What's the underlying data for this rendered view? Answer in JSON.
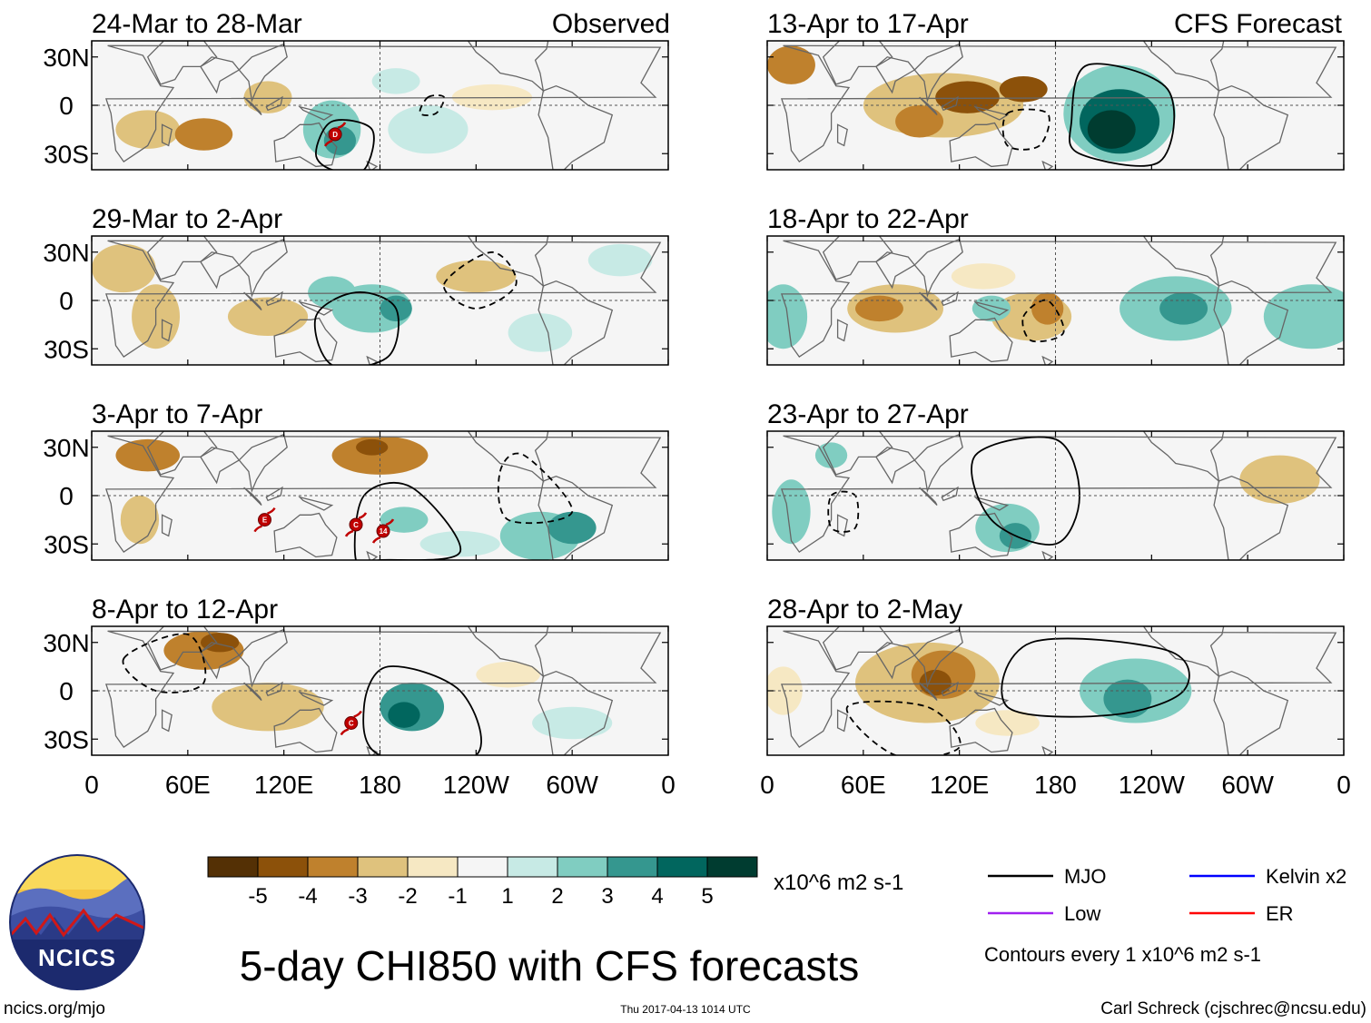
{
  "figure": {
    "title": "5-day CHI850 with CFS forecasts",
    "url": "ncics.org/mjo",
    "timestamp": "Thu 2017-04-13 1014 UTC",
    "credit": "Carl Schreck (cjschrec@ncsu.edu)",
    "logo_text": "NCICS"
  },
  "headers": {
    "observed": "Observed",
    "forecast": "CFS Forecast"
  },
  "chart_data": {
    "type": "heatmap",
    "variable": "CHI850",
    "units": "x10^6 m2 s-1",
    "lat_ticks": [
      "30N",
      "0",
      "30S"
    ],
    "lon_ticks": [
      "0",
      "60E",
      "120E",
      "180",
      "120W",
      "60W",
      "0"
    ],
    "lon_values": [
      0,
      60,
      120,
      180,
      240,
      300,
      360
    ],
    "lat_values": [
      30,
      0,
      -30
    ],
    "lat_range": [
      -40,
      40
    ],
    "lon_range": [
      0,
      360
    ],
    "colorbar": {
      "labels": [
        "-5",
        "-4",
        "-3",
        "-2",
        "-1",
        "1",
        "2",
        "3",
        "4",
        "5"
      ],
      "levels": [
        -5,
        -4,
        -3,
        -2,
        -1,
        1,
        2,
        3,
        4,
        5
      ],
      "colors": [
        "#543005",
        "#8c510a",
        "#bf812d",
        "#dfc27d",
        "#f6e8c3",
        "#f5f5f5",
        "#c7eae5",
        "#80cdc1",
        "#35978f",
        "#01665e",
        "#003c30"
      ]
    },
    "panels": [
      {
        "label": "24-Mar to 28-Mar",
        "source": "Observed",
        "blobs": [
          [
            35,
            -15,
            20,
            12,
            -2
          ],
          [
            70,
            -18,
            18,
            10,
            -3
          ],
          [
            110,
            5,
            15,
            10,
            -2
          ],
          [
            150,
            -15,
            18,
            18,
            2
          ],
          [
            155,
            -22,
            10,
            9,
            3
          ],
          [
            210,
            -15,
            25,
            15,
            1
          ],
          [
            190,
            15,
            15,
            8,
            1
          ],
          [
            250,
            5,
            25,
            8,
            -1
          ]
        ],
        "contours": [
          {
            "kind": "MJO",
            "style": "solid",
            "points": [
              [
                140,
                -30
              ],
              [
                150,
                -10
              ],
              [
                175,
                -15
              ],
              [
                170,
                -40
              ],
              [
                150,
                -40
              ]
            ]
          },
          {
            "kind": "MJO",
            "style": "dashed",
            "points": [
              [
                210,
                5
              ],
              [
                220,
                5
              ],
              [
                215,
                -5
              ],
              [
                205,
                -5
              ]
            ]
          }
        ],
        "storms": [
          {
            "id": "D",
            "lon": 152,
            "lat": -18
          }
        ]
      },
      {
        "label": "29-Mar to 2-Apr",
        "source": "Observed",
        "blobs": [
          [
            20,
            20,
            20,
            15,
            -2
          ],
          [
            40,
            -10,
            15,
            20,
            -2
          ],
          [
            110,
            -10,
            25,
            12,
            -2
          ],
          [
            150,
            5,
            15,
            10,
            2
          ],
          [
            175,
            -5,
            25,
            15,
            2
          ],
          [
            190,
            -5,
            10,
            8,
            3
          ],
          [
            240,
            15,
            25,
            10,
            -2
          ],
          [
            330,
            25,
            20,
            10,
            1
          ],
          [
            280,
            -20,
            20,
            12,
            1
          ]
        ],
        "contours": [
          {
            "kind": "MJO",
            "style": "solid",
            "points": [
              [
                140,
                -10
              ],
              [
                165,
                5
              ],
              [
                190,
                -5
              ],
              [
                185,
                -35
              ],
              [
                150,
                -40
              ]
            ]
          },
          {
            "kind": "MJO",
            "style": "dashed",
            "points": [
              [
                220,
                10
              ],
              [
                250,
                30
              ],
              [
                265,
                10
              ],
              [
                240,
                -5
              ]
            ]
          }
        ],
        "storms": []
      },
      {
        "label": "3-Apr to 7-Apr",
        "source": "Observed",
        "blobs": [
          [
            35,
            25,
            20,
            10,
            -3
          ],
          [
            30,
            -15,
            12,
            15,
            -2
          ],
          [
            180,
            25,
            30,
            12,
            -3
          ],
          [
            175,
            30,
            10,
            5,
            -4
          ],
          [
            280,
            -25,
            25,
            15,
            2
          ],
          [
            300,
            -20,
            15,
            10,
            3
          ],
          [
            195,
            -15,
            15,
            8,
            2
          ],
          [
            230,
            -30,
            25,
            8,
            1
          ]
        ],
        "contours": [
          {
            "kind": "MJO",
            "style": "solid",
            "points": [
              [
                165,
                -40
              ],
              [
                170,
                0
              ],
              [
                200,
                5
              ],
              [
                230,
                -35
              ],
              [
                180,
                -40
              ]
            ]
          },
          {
            "kind": "MJO",
            "style": "dashed",
            "points": [
              [
                255,
                15
              ],
              [
                270,
                25
              ],
              [
                300,
                -10
              ],
              [
                260,
                -15
              ]
            ]
          }
        ],
        "storms": [
          {
            "id": "E",
            "lon": 108,
            "lat": -15
          },
          {
            "id": "C",
            "lon": 165,
            "lat": -18
          },
          {
            "id": "14",
            "lon": 182,
            "lat": -22
          }
        ]
      },
      {
        "label": "8-Apr to 12-Apr",
        "source": "Observed",
        "blobs": [
          [
            70,
            25,
            25,
            12,
            -3
          ],
          [
            80,
            30,
            12,
            6,
            -4
          ],
          [
            110,
            -10,
            35,
            15,
            -2
          ],
          [
            200,
            -10,
            20,
            15,
            3
          ],
          [
            195,
            -15,
            10,
            8,
            4
          ],
          [
            300,
            -20,
            25,
            10,
            1
          ],
          [
            260,
            10,
            20,
            8,
            -1
          ]
        ],
        "contours": [
          {
            "kind": "MJO",
            "style": "solid",
            "points": [
              [
                170,
                -10
              ],
              [
                185,
                15
              ],
              [
                230,
                0
              ],
              [
                240,
                -40
              ],
              [
                180,
                -40
              ]
            ]
          },
          {
            "kind": "MJO",
            "style": "dashed",
            "points": [
              [
                20,
                20
              ],
              [
                60,
                35
              ],
              [
                70,
                5
              ],
              [
                40,
                0
              ]
            ]
          }
        ],
        "storms": [
          {
            "id": "C",
            "lon": 162,
            "lat": -20
          }
        ]
      },
      {
        "label": "13-Apr to 17-Apr",
        "source": "CFS Forecast",
        "blobs": [
          [
            15,
            25,
            15,
            12,
            -3
          ],
          [
            110,
            0,
            50,
            20,
            -2
          ],
          [
            125,
            5,
            20,
            10,
            -4
          ],
          [
            160,
            10,
            15,
            8,
            -4
          ],
          [
            95,
            -10,
            15,
            10,
            -3
          ],
          [
            220,
            -5,
            35,
            30,
            2
          ],
          [
            220,
            -10,
            25,
            20,
            4
          ],
          [
            215,
            -15,
            15,
            12,
            5
          ]
        ],
        "contours": [
          {
            "kind": "MJO",
            "style": "solid",
            "points": [
              [
                190,
                -10
              ],
              [
                200,
                25
              ],
              [
                250,
                10
              ],
              [
                245,
                -35
              ],
              [
                195,
                -30
              ]
            ]
          },
          {
            "kind": "MJO",
            "style": "dashed",
            "points": [
              [
                150,
                -5
              ],
              [
                175,
                -5
              ],
              [
                170,
                -25
              ],
              [
                150,
                -25
              ]
            ]
          }
        ],
        "storms": []
      },
      {
        "label": "18-Apr to 22-Apr",
        "source": "CFS Forecast",
        "blobs": [
          [
            80,
            -5,
            30,
            15,
            -2
          ],
          [
            70,
            -5,
            15,
            8,
            -3
          ],
          [
            165,
            -10,
            25,
            15,
            -2
          ],
          [
            175,
            -5,
            10,
            10,
            -3
          ],
          [
            140,
            -5,
            12,
            8,
            2
          ],
          [
            255,
            -5,
            35,
            20,
            2
          ],
          [
            260,
            -5,
            15,
            10,
            3
          ],
          [
            340,
            -10,
            30,
            20,
            2
          ],
          [
            10,
            -10,
            15,
            20,
            2
          ],
          [
            135,
            15,
            20,
            8,
            -1
          ]
        ],
        "contours": [
          {
            "kind": "MJO",
            "style": "dashed",
            "points": [
              [
                160,
                -10
              ],
              [
                175,
                0
              ],
              [
                185,
                -20
              ],
              [
                165,
                -25
              ]
            ]
          }
        ],
        "storms": []
      },
      {
        "label": "23-Apr to 27-Apr",
        "source": "CFS Forecast",
        "blobs": [
          [
            15,
            -10,
            12,
            20,
            2
          ],
          [
            150,
            -20,
            20,
            15,
            2
          ],
          [
            155,
            -25,
            10,
            8,
            3
          ],
          [
            320,
            10,
            25,
            15,
            -2
          ],
          [
            40,
            25,
            10,
            8,
            2
          ]
        ],
        "contours": [
          {
            "kind": "MJO",
            "style": "solid",
            "points": [
              [
                130,
                25
              ],
              [
                180,
                35
              ],
              [
                195,
                0
              ],
              [
                180,
                -30
              ],
              [
                140,
                -15
              ]
            ]
          },
          {
            "kind": "MJO",
            "style": "dashed",
            "points": [
              [
                40,
                0
              ],
              [
                55,
                0
              ],
              [
                55,
                -20
              ],
              [
                40,
                -20
              ]
            ]
          }
        ],
        "storms": []
      },
      {
        "label": "28-Apr to 2-May",
        "source": "CFS Forecast",
        "blobs": [
          [
            100,
            5,
            45,
            25,
            -2
          ],
          [
            110,
            10,
            20,
            15,
            -3
          ],
          [
            105,
            5,
            10,
            8,
            -4
          ],
          [
            230,
            0,
            35,
            20,
            2
          ],
          [
            225,
            -5,
            15,
            12,
            3
          ],
          [
            10,
            0,
            12,
            15,
            -1
          ],
          [
            150,
            -20,
            20,
            8,
            -1
          ]
        ],
        "contours": [
          {
            "kind": "MJO",
            "style": "solid",
            "points": [
              [
                150,
                -10
              ],
              [
                165,
                30
              ],
              [
                250,
                25
              ],
              [
                260,
                0
              ],
              [
                215,
                -15
              ]
            ]
          },
          {
            "kind": "MJO",
            "style": "dashed",
            "points": [
              [
                50,
                -10
              ],
              [
                80,
                -40
              ],
              [
                120,
                -35
              ],
              [
                100,
                -10
              ]
            ]
          }
        ],
        "storms": []
      }
    ]
  },
  "colorbar_units": "x10^6 m2 s-1",
  "legend": {
    "items": [
      {
        "label": "MJO",
        "color": "#000000"
      },
      {
        "label": "Kelvin x2",
        "color": "#0000ff"
      },
      {
        "label": "Low",
        "color": "#a020f0"
      },
      {
        "label": "ER",
        "color": "#ff0000"
      }
    ],
    "note": "Contours every 1 x10^6 m2 s-1"
  }
}
